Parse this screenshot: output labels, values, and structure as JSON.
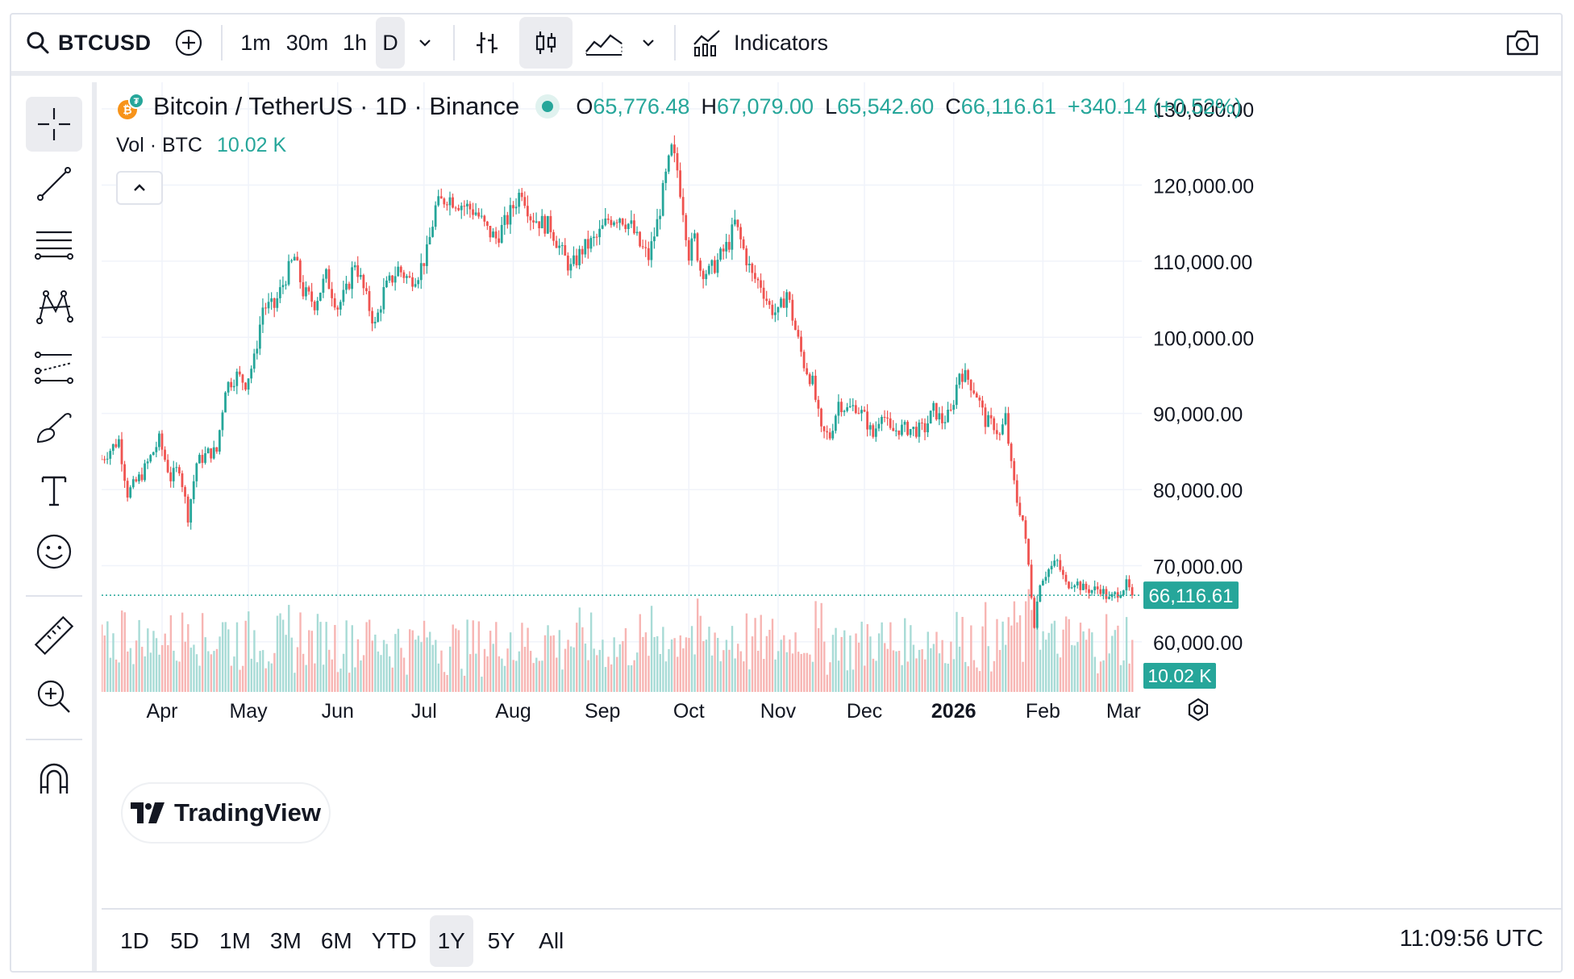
{
  "toolbar": {
    "symbol": "BTCUSD",
    "intervals": [
      "1m",
      "30m",
      "1h",
      "D"
    ],
    "active_interval": "D",
    "indicators_label": "Indicators"
  },
  "legend": {
    "title": "Bitcoin / TetherUS · 1D · Binance",
    "o_label": "O",
    "o_value": "65,776.48",
    "h_label": "H",
    "h_value": "67,079.00",
    "l_label": "L",
    "l_value": "65,542.60",
    "c_label": "C",
    "c_value": "66,116.61",
    "change": "+340.14 (+0.52%)",
    "vol_label": "Vol · BTC",
    "vol_value": "10.02 K"
  },
  "price_badge": "66,116.61",
  "volume_badge": "10.02 K",
  "watermark": "TradingView",
  "range_buttons": [
    "1D",
    "5D",
    "1M",
    "3M",
    "6M",
    "YTD",
    "1Y",
    "5Y",
    "All"
  ],
  "active_range": "1Y",
  "clock": "11:09:56 UTC",
  "colors": {
    "up": "#26a69a",
    "down": "#ef5350",
    "grid": "#f0f3fa"
  },
  "chart_data": {
    "type": "candlestick",
    "title": "Bitcoin / TetherUS · 1D · Binance",
    "y_ticks": [
      "130,000.00",
      "120,000.00",
      "110,000.00",
      "100,000.00",
      "90,000.00",
      "80,000.00",
      "70,000.00",
      "60,000.00"
    ],
    "y_tick_values": [
      130000,
      120000,
      110000,
      100000,
      90000,
      80000,
      70000,
      60000
    ],
    "ylim": [
      53000,
      133500
    ],
    "x_ticks": [
      "Apr",
      "May",
      "Jun",
      "Jul",
      "Aug",
      "Sep",
      "Oct",
      "Nov",
      "Dec",
      "2026",
      "Feb",
      "Mar"
    ],
    "x_tick_days": [
      21,
      51,
      82,
      112,
      143,
      174,
      204,
      235,
      265,
      296,
      327,
      355
    ],
    "last_price": 66116.61,
    "close_path": [
      [
        0,
        84000
      ],
      [
        6,
        86500
      ],
      [
        9,
        79500
      ],
      [
        14,
        82000
      ],
      [
        20,
        86500
      ],
      [
        24,
        81500
      ],
      [
        27,
        83000
      ],
      [
        30,
        76500
      ],
      [
        33,
        83500
      ],
      [
        37,
        84800
      ],
      [
        40,
        85000
      ],
      [
        43,
        93500
      ],
      [
        47,
        95000
      ],
      [
        50,
        94000
      ],
      [
        53,
        97000
      ],
      [
        56,
        104000
      ],
      [
        60,
        104000
      ],
      [
        64,
        108000
      ],
      [
        67,
        110500
      ],
      [
        70,
        106000
      ],
      [
        74,
        104500
      ],
      [
        78,
        108000
      ],
      [
        82,
        104000
      ],
      [
        85,
        106000
      ],
      [
        88,
        110000
      ],
      [
        92,
        105000
      ],
      [
        95,
        101500
      ],
      [
        98,
        106000
      ],
      [
        103,
        109000
      ],
      [
        107,
        107500
      ],
      [
        110,
        108500
      ],
      [
        113,
        111000
      ],
      [
        116,
        117000
      ],
      [
        120,
        118500
      ],
      [
        125,
        117500
      ],
      [
        130,
        116500
      ],
      [
        134,
        114000
      ],
      [
        137,
        113000
      ],
      [
        141,
        115500
      ],
      [
        144,
        118000
      ],
      [
        146,
        119500
      ],
      [
        149,
        116000
      ],
      [
        153,
        115000
      ],
      [
        156,
        114500
      ],
      [
        160,
        111000
      ],
      [
        163,
        109000
      ],
      [
        167,
        111500
      ],
      [
        172,
        113000
      ],
      [
        176,
        115500
      ],
      [
        180,
        116000
      ],
      [
        184,
        114500
      ],
      [
        187,
        112000
      ],
      [
        190,
        110500
      ],
      [
        193,
        115000
      ],
      [
        196,
        121000
      ],
      [
        198,
        124500
      ],
      [
        200,
        122000
      ],
      [
        202,
        117000
      ],
      [
        204,
        111000
      ],
      [
        206,
        113000
      ],
      [
        208,
        109000
      ],
      [
        211,
        108500
      ],
      [
        214,
        110000
      ],
      [
        218,
        112500
      ],
      [
        220,
        115000
      ],
      [
        223,
        111500
      ],
      [
        226,
        108000
      ],
      [
        229,
        107000
      ],
      [
        232,
        104000
      ],
      [
        235,
        103000
      ],
      [
        238,
        106000
      ],
      [
        241,
        101000
      ],
      [
        244,
        96500
      ],
      [
        247,
        94000
      ],
      [
        250,
        87500
      ],
      [
        253,
        87000
      ],
      [
        256,
        91500
      ],
      [
        259,
        90500
      ],
      [
        262,
        91000
      ],
      [
        265,
        89500
      ],
      [
        268,
        87000
      ],
      [
        271,
        90500
      ],
      [
        274,
        87500
      ],
      [
        277,
        88000
      ],
      [
        280,
        88000
      ],
      [
        283,
        87800
      ],
      [
        286,
        88000
      ],
      [
        289,
        90500
      ],
      [
        292,
        89000
      ],
      [
        295,
        90000
      ],
      [
        298,
        95500
      ],
      [
        301,
        94500
      ],
      [
        304,
        92500
      ],
      [
        307,
        89000
      ],
      [
        310,
        88500
      ],
      [
        312,
        87000
      ],
      [
        314,
        89500
      ],
      [
        316,
        83000
      ],
      [
        318,
        78500
      ],
      [
        320,
        76000
      ],
      [
        322,
        70000
      ],
      [
        324,
        62500
      ],
      [
        326,
        68000
      ],
      [
        329,
        69500
      ],
      [
        332,
        70500
      ],
      [
        335,
        67500
      ],
      [
        338,
        68000
      ],
      [
        341,
        67000
      ],
      [
        344,
        66800
      ],
      [
        347,
        67000
      ],
      [
        350,
        65500
      ],
      [
        353,
        66500
      ],
      [
        356,
        67500
      ],
      [
        358,
        66116
      ]
    ]
  }
}
